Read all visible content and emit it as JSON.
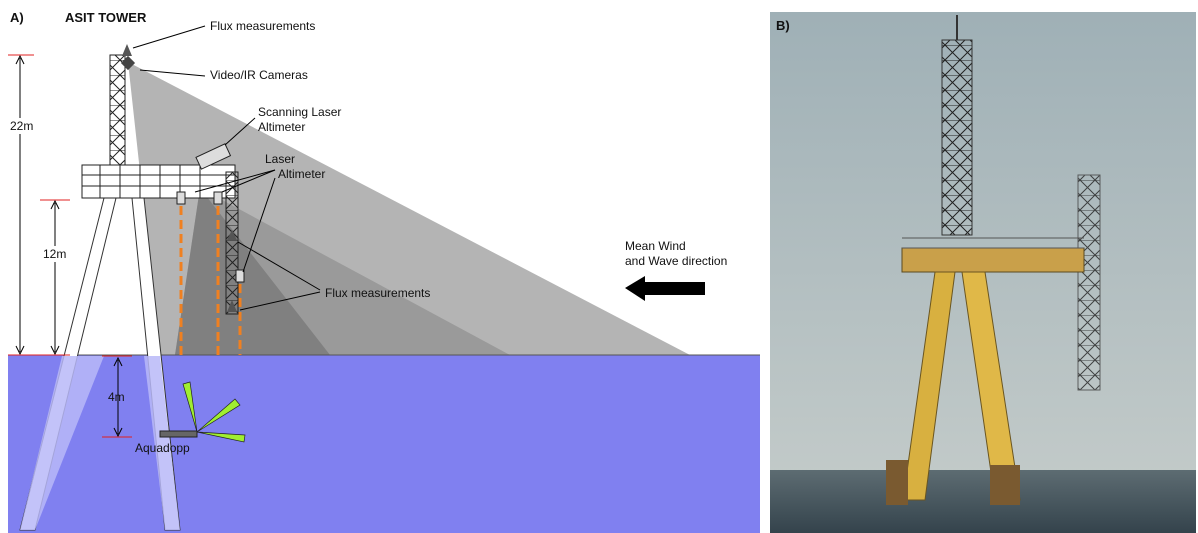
{
  "panel_a": {
    "label": "A)",
    "title": "ASIT TOWER",
    "annotations": {
      "flux_top": "Flux measurements",
      "cameras": "Video/IR Cameras",
      "scanning_laser": [
        "Scanning Laser",
        "Altimeter"
      ],
      "laser": [
        "Laser",
        "Altimeter"
      ],
      "flux_lower": "Flux measurements",
      "wind": [
        "Mean Wind",
        "and Wave direction"
      ],
      "aquadopp": "Aquadopp"
    },
    "dimensions": {
      "total": "22m",
      "platform": "12m",
      "depth": "4m"
    }
  },
  "panel_b": {
    "label": "B)"
  }
}
